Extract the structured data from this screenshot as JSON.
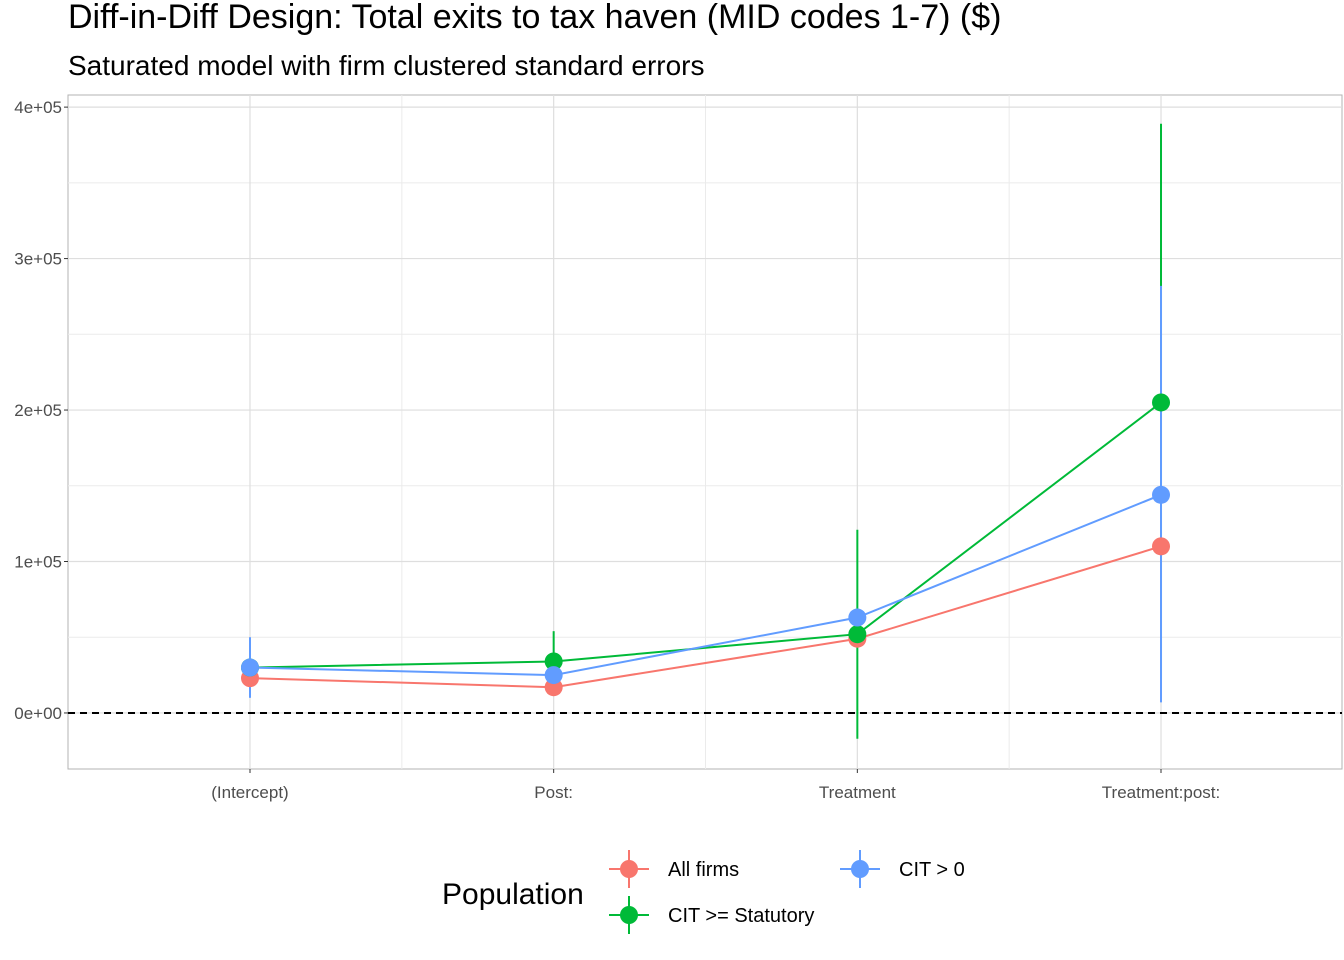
{
  "chart_data": {
    "type": "scatter",
    "title": "Diff-in-Diff Design: Total exits to tax haven (MID codes 1-7)  ($)",
    "subtitle": "Saturated model with firm clustered standard errors",
    "xlabel": "",
    "ylabel": "",
    "categories": [
      "(Intercept)",
      "Post:",
      "Treatment",
      "Treatment:post:"
    ],
    "y_ticks": [
      0,
      100000,
      200000,
      300000,
      400000
    ],
    "y_tick_labels": [
      "0e+00",
      "1e+05",
      "2e+05",
      "3e+05",
      "4e+05"
    ],
    "ylim": [
      -37000,
      408000
    ],
    "grid": true,
    "reference_line": {
      "y": 0,
      "style": "dashed"
    },
    "legend": {
      "title": "Population",
      "position": "bottom"
    },
    "series": [
      {
        "name": "All firms",
        "color": "#F8766D",
        "values": [
          23000,
          17000,
          49000,
          110000
        ],
        "lower": [
          null,
          null,
          null,
          null
        ],
        "upper": [
          null,
          null,
          null,
          null
        ]
      },
      {
        "name": "CIT >= Statutory",
        "color": "#00BA38",
        "values": [
          30000,
          34000,
          52000,
          205000
        ],
        "lower": [
          null,
          15000,
          -17000,
          22000
        ],
        "upper": [
          null,
          54000,
          121000,
          389000
        ]
      },
      {
        "name": "CIT > 0",
        "color": "#619CFF",
        "values": [
          30000,
          25000,
          63000,
          144000
        ],
        "lower": [
          10000,
          null,
          null,
          7000
        ],
        "upper": [
          50000,
          null,
          128000,
          282000
        ]
      }
    ]
  }
}
